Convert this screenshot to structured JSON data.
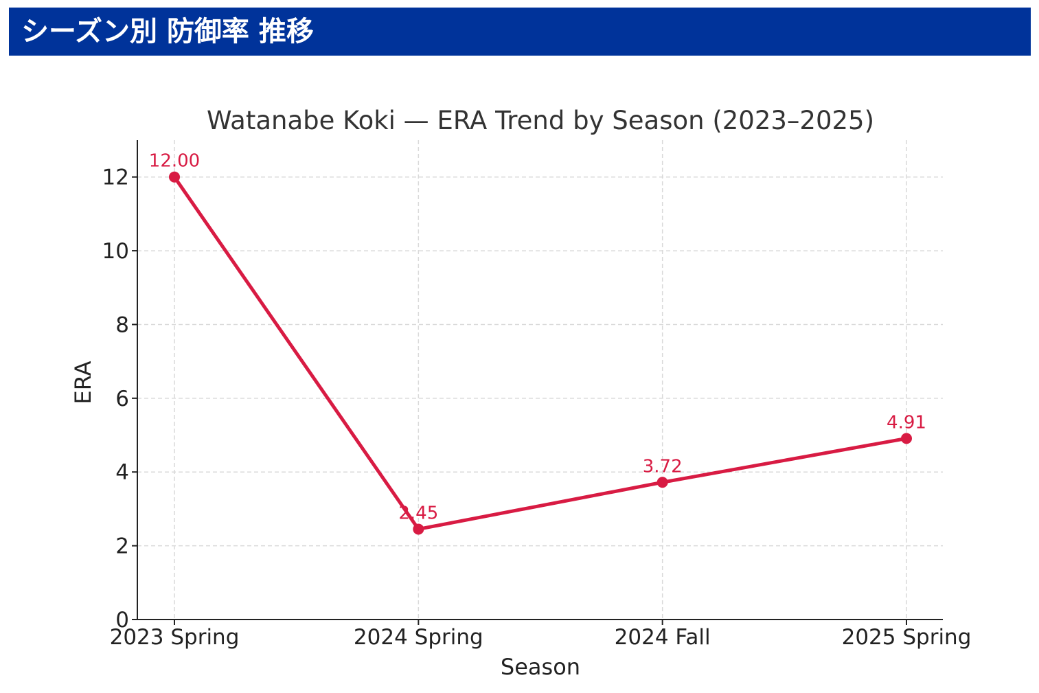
{
  "header": {
    "title": "シーズン別 防御率 推移",
    "background_color": "#00339a"
  },
  "chart_data": {
    "type": "line",
    "title": "Watanabe Koki — ERA Trend by Season (2023–2025)",
    "xlabel": "Season",
    "ylabel": "ERA",
    "categories": [
      "2023 Spring",
      "2024 Spring",
      "2024 Fall",
      "2025 Spring"
    ],
    "series": [
      {
        "values": [
          12.0,
          2.45,
          3.72,
          4.91
        ],
        "labels": [
          "12.00",
          "2.45",
          "3.72",
          "4.91"
        ],
        "color": "#d81b43",
        "marker": "circle"
      }
    ],
    "ylim": [
      0,
      13
    ],
    "yticks": [
      0,
      2,
      4,
      6,
      8,
      10,
      12
    ],
    "grid": true,
    "legend": "none"
  }
}
